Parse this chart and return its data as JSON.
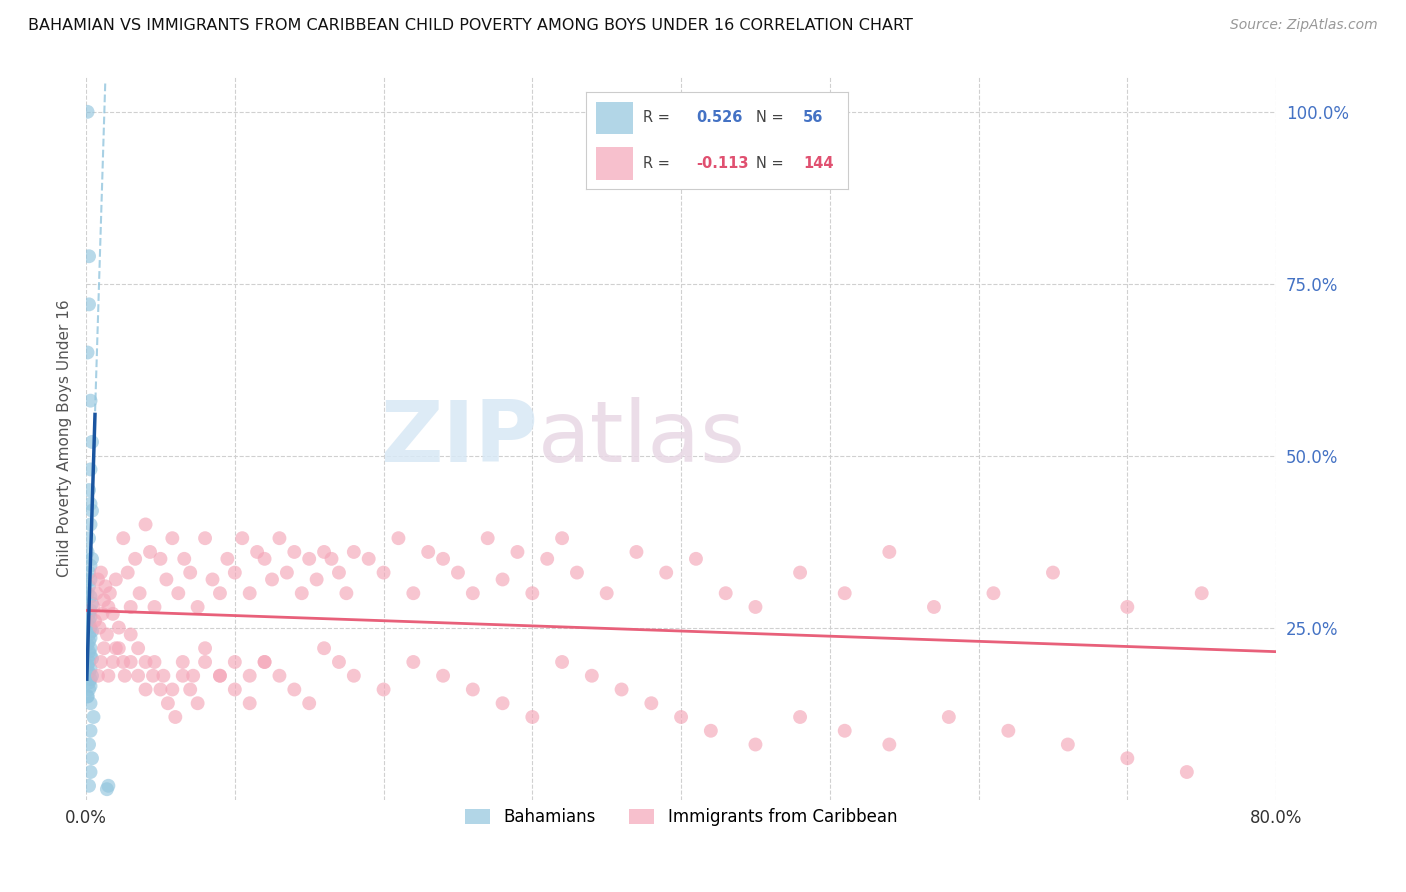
{
  "title": "BAHAMIAN VS IMMIGRANTS FROM CARIBBEAN CHILD POVERTY AMONG BOYS UNDER 16 CORRELATION CHART",
  "source": "Source: ZipAtlas.com",
  "ylabel": "Child Poverty Among Boys Under 16",
  "r_blue": 0.526,
  "n_blue": 56,
  "r_pink": -0.113,
  "n_pink": 144,
  "blue_color": "#92c5de",
  "pink_color": "#f4a6b8",
  "trendline_blue": "#1a55a0",
  "trendline_blue_dash": "#92c5de",
  "trendline_pink": "#e8607a",
  "watermark_zip": "ZIP",
  "watermark_atlas": "atlas",
  "xlim": [
    0.0,
    0.8
  ],
  "ylim": [
    0.0,
    1.05
  ],
  "blue_scatter_x": [
    0.001,
    0.002,
    0.002,
    0.001,
    0.003,
    0.004,
    0.003,
    0.002,
    0.003,
    0.004,
    0.003,
    0.002,
    0.001,
    0.004,
    0.003,
    0.002,
    0.003,
    0.002,
    0.001,
    0.003,
    0.004,
    0.003,
    0.002,
    0.003,
    0.002,
    0.001,
    0.003,
    0.004,
    0.002,
    0.003,
    0.002,
    0.001,
    0.003,
    0.002,
    0.003,
    0.004,
    0.002,
    0.001,
    0.003,
    0.002,
    0.004,
    0.003,
    0.002,
    0.003,
    0.002,
    0.001,
    0.003,
    0.005,
    0.003,
    0.002,
    0.004,
    0.003,
    0.002,
    0.001,
    0.015,
    0.014
  ],
  "blue_scatter_y": [
    1.0,
    0.79,
    0.72,
    0.65,
    0.58,
    0.52,
    0.48,
    0.45,
    0.43,
    0.42,
    0.4,
    0.38,
    0.36,
    0.35,
    0.34,
    0.33,
    0.32,
    0.31,
    0.3,
    0.295,
    0.285,
    0.275,
    0.27,
    0.265,
    0.26,
    0.255,
    0.25,
    0.245,
    0.24,
    0.235,
    0.23,
    0.225,
    0.22,
    0.215,
    0.21,
    0.205,
    0.2,
    0.195,
    0.19,
    0.185,
    0.18,
    0.175,
    0.17,
    0.165,
    0.16,
    0.15,
    0.14,
    0.12,
    0.1,
    0.08,
    0.06,
    0.04,
    0.02,
    0.15,
    0.02,
    0.015
  ],
  "pink_scatter_x": [
    0.005,
    0.006,
    0.007,
    0.008,
    0.009,
    0.01,
    0.011,
    0.012,
    0.013,
    0.014,
    0.015,
    0.016,
    0.018,
    0.02,
    0.022,
    0.025,
    0.028,
    0.03,
    0.033,
    0.036,
    0.04,
    0.043,
    0.046,
    0.05,
    0.054,
    0.058,
    0.062,
    0.066,
    0.07,
    0.075,
    0.08,
    0.085,
    0.09,
    0.095,
    0.1,
    0.105,
    0.11,
    0.115,
    0.12,
    0.125,
    0.13,
    0.135,
    0.14,
    0.145,
    0.15,
    0.155,
    0.16,
    0.165,
    0.17,
    0.175,
    0.18,
    0.19,
    0.2,
    0.21,
    0.22,
    0.23,
    0.24,
    0.25,
    0.26,
    0.27,
    0.28,
    0.29,
    0.3,
    0.31,
    0.32,
    0.33,
    0.35,
    0.37,
    0.39,
    0.41,
    0.43,
    0.45,
    0.48,
    0.51,
    0.54,
    0.57,
    0.61,
    0.65,
    0.7,
    0.75,
    0.02,
    0.025,
    0.03,
    0.035,
    0.04,
    0.045,
    0.05,
    0.055,
    0.06,
    0.065,
    0.07,
    0.075,
    0.08,
    0.09,
    0.1,
    0.11,
    0.12,
    0.13,
    0.14,
    0.15,
    0.16,
    0.17,
    0.18,
    0.2,
    0.22,
    0.24,
    0.26,
    0.28,
    0.3,
    0.32,
    0.34,
    0.36,
    0.38,
    0.4,
    0.42,
    0.45,
    0.48,
    0.51,
    0.54,
    0.58,
    0.62,
    0.66,
    0.7,
    0.74,
    0.008,
    0.01,
    0.012,
    0.015,
    0.018,
    0.022,
    0.026,
    0.03,
    0.035,
    0.04,
    0.046,
    0.052,
    0.058,
    0.065,
    0.072,
    0.08,
    0.09,
    0.1,
    0.11,
    0.12
  ],
  "pink_scatter_y": [
    0.28,
    0.26,
    0.3,
    0.32,
    0.25,
    0.33,
    0.27,
    0.29,
    0.31,
    0.24,
    0.28,
    0.3,
    0.27,
    0.32,
    0.25,
    0.38,
    0.33,
    0.28,
    0.35,
    0.3,
    0.4,
    0.36,
    0.28,
    0.35,
    0.32,
    0.38,
    0.3,
    0.35,
    0.33,
    0.28,
    0.38,
    0.32,
    0.3,
    0.35,
    0.33,
    0.38,
    0.3,
    0.36,
    0.35,
    0.32,
    0.38,
    0.33,
    0.36,
    0.3,
    0.35,
    0.32,
    0.36,
    0.35,
    0.33,
    0.3,
    0.36,
    0.35,
    0.33,
    0.38,
    0.3,
    0.36,
    0.35,
    0.33,
    0.3,
    0.38,
    0.32,
    0.36,
    0.3,
    0.35,
    0.38,
    0.33,
    0.3,
    0.36,
    0.33,
    0.35,
    0.3,
    0.28,
    0.33,
    0.3,
    0.36,
    0.28,
    0.3,
    0.33,
    0.28,
    0.3,
    0.22,
    0.2,
    0.24,
    0.22,
    0.2,
    0.18,
    0.16,
    0.14,
    0.12,
    0.18,
    0.16,
    0.14,
    0.22,
    0.18,
    0.16,
    0.14,
    0.2,
    0.18,
    0.16,
    0.14,
    0.22,
    0.2,
    0.18,
    0.16,
    0.2,
    0.18,
    0.16,
    0.14,
    0.12,
    0.2,
    0.18,
    0.16,
    0.14,
    0.12,
    0.1,
    0.08,
    0.12,
    0.1,
    0.08,
    0.12,
    0.1,
    0.08,
    0.06,
    0.04,
    0.18,
    0.2,
    0.22,
    0.18,
    0.2,
    0.22,
    0.18,
    0.2,
    0.18,
    0.16,
    0.2,
    0.18,
    0.16,
    0.2,
    0.18,
    0.2,
    0.18,
    0.2,
    0.18,
    0.2
  ]
}
